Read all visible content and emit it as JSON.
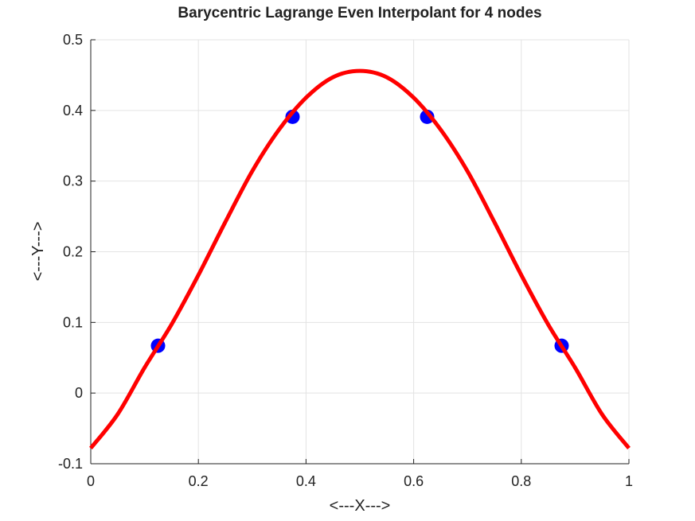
{
  "chart_data": {
    "type": "line",
    "title": "Barycentric Lagrange Even Interpolant for 4 nodes",
    "xlabel": "<---X--->",
    "ylabel": "<---Y--->",
    "xlim": [
      0,
      1
    ],
    "ylim": [
      -0.1,
      0.5
    ],
    "xticks": [
      0,
      0.2,
      0.4,
      0.6,
      0.8,
      1
    ],
    "yticks": [
      -0.1,
      0,
      0.1,
      0.2,
      0.3,
      0.4,
      0.5
    ],
    "grid": true,
    "series": [
      {
        "style": "line",
        "color": "#ff0000",
        "x": [
          0,
          0.05,
          0.1,
          0.15,
          0.2,
          0.25,
          0.3,
          0.35,
          0.4,
          0.45,
          0.5,
          0.55,
          0.6,
          0.65,
          0.7,
          0.75,
          0.8,
          0.85,
          0.9,
          0.95,
          1
        ],
        "values": [
          -0.078,
          -0.03,
          0.036,
          0.097,
          0.167,
          0.242,
          0.314,
          0.373,
          0.418,
          0.447,
          0.456,
          0.447,
          0.418,
          0.373,
          0.314,
          0.242,
          0.167,
          0.097,
          0.036,
          -0.03,
          -0.078
        ]
      },
      {
        "style": "marker",
        "color": "#0000ff",
        "x": [
          0.125,
          0.375,
          0.625,
          0.875
        ],
        "values": [
          0.067,
          0.391,
          0.391,
          0.067
        ]
      }
    ]
  }
}
